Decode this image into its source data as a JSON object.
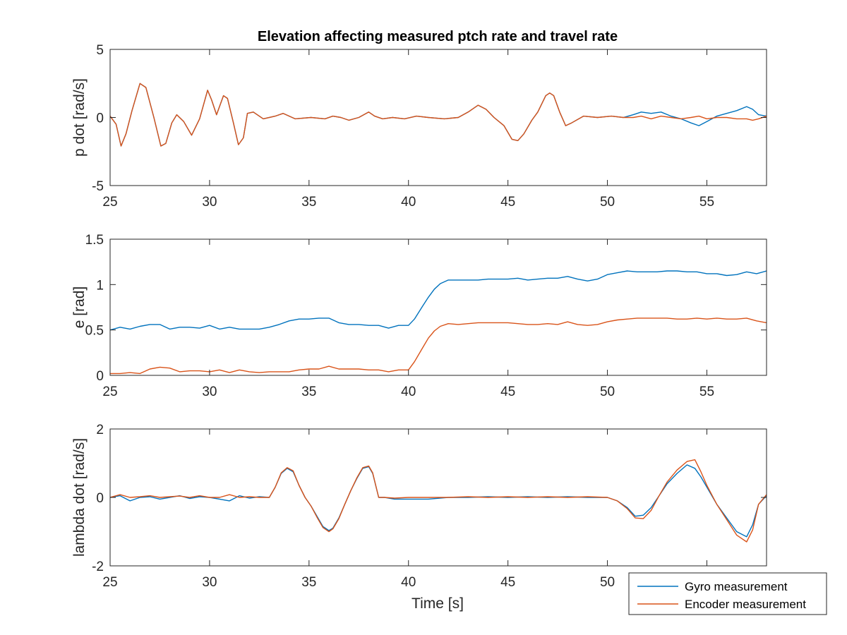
{
  "chart_data": {
    "type": "line",
    "title": "Elevation affecting measured ptch rate and travel rate",
    "xlabel": "Time [s]",
    "xlim": [
      25,
      58
    ],
    "xticks": [
      25,
      30,
      35,
      40,
      45,
      50,
      55
    ],
    "series_names": [
      "Gyro measurement",
      "Encoder measurement"
    ],
    "series_colors": [
      "#0072BD",
      "#D95319"
    ],
    "legend_location": "bottom-right",
    "subplots": [
      {
        "ylabel": "p dot [rad/s]",
        "ylim": [
          -5,
          5
        ],
        "yticks": [
          -5,
          0,
          5
        ],
        "series": [
          {
            "name": "Gyro measurement",
            "x": [
              25,
              25.3,
              25.55,
              25.8,
              26.1,
              26.5,
              26.8,
              27.2,
              27.55,
              27.8,
              28.1,
              28.35,
              28.7,
              29.1,
              29.5,
              29.9,
              30.1,
              30.35,
              30.7,
              30.9,
              31.2,
              31.45,
              31.7,
              31.9,
              32.2,
              32.7,
              33.3,
              33.7,
              34.3,
              35.1,
              35.8,
              36.2,
              36.6,
              37.0,
              37.5,
              38.0,
              38.3,
              38.7,
              39.2,
              39.8,
              40.4,
              41.0,
              41.8,
              42.5,
              43.0,
              43.5,
              43.9,
              44.3,
              44.8,
              45.2,
              45.5,
              45.8,
              46.2,
              46.5,
              46.9,
              47.1,
              47.3,
              47.6,
              47.9,
              48.2,
              48.8,
              49.5,
              50.2,
              50.8,
              51.3,
              51.7,
              52.2,
              52.7,
              53.2,
              53.7,
              54.2,
              54.6,
              55.0,
              55.5,
              56.0,
              56.5,
              57.0,
              57.3,
              57.6,
              58.0
            ],
            "y": [
              0.1,
              -0.5,
              -2.1,
              -1.2,
              0.5,
              2.5,
              2.2,
              0.0,
              -2.1,
              -1.9,
              -0.4,
              0.2,
              -0.3,
              -1.3,
              -0.1,
              2.0,
              1.3,
              0.2,
              1.6,
              1.4,
              -0.4,
              -2.0,
              -1.5,
              0.3,
              0.4,
              -0.1,
              0.1,
              0.3,
              -0.1,
              0.0,
              -0.1,
              0.1,
              0.0,
              -0.2,
              0.0,
              0.4,
              0.1,
              -0.1,
              0.0,
              -0.1,
              0.1,
              0.0,
              -0.1,
              0.0,
              0.4,
              0.9,
              0.6,
              0.0,
              -0.6,
              -1.6,
              -1.7,
              -1.2,
              -0.2,
              0.4,
              1.6,
              1.8,
              1.6,
              0.4,
              -0.6,
              -0.4,
              0.1,
              0.0,
              0.1,
              0.0,
              0.2,
              0.4,
              0.3,
              0.4,
              0.1,
              -0.1,
              -0.4,
              -0.6,
              -0.3,
              0.1,
              0.3,
              0.5,
              0.8,
              0.6,
              0.2,
              0.1
            ]
          },
          {
            "name": "Encoder measurement",
            "x": [
              25,
              25.3,
              25.55,
              25.8,
              26.1,
              26.5,
              26.8,
              27.2,
              27.55,
              27.8,
              28.1,
              28.35,
              28.7,
              29.1,
              29.5,
              29.9,
              30.1,
              30.35,
              30.7,
              30.9,
              31.2,
              31.45,
              31.7,
              31.9,
              32.2,
              32.7,
              33.3,
              33.7,
              34.3,
              35.1,
              35.8,
              36.2,
              36.6,
              37.0,
              37.5,
              38.0,
              38.3,
              38.7,
              39.2,
              39.8,
              40.4,
              41.0,
              41.8,
              42.5,
              43.0,
              43.5,
              43.9,
              44.3,
              44.8,
              45.2,
              45.5,
              45.8,
              46.2,
              46.5,
              46.9,
              47.1,
              47.3,
              47.6,
              47.9,
              48.2,
              48.8,
              49.5,
              50.2,
              50.8,
              51.3,
              51.7,
              52.2,
              52.7,
              53.2,
              53.7,
              54.2,
              54.6,
              55.0,
              55.5,
              56.0,
              56.5,
              57.0,
              57.3,
              57.6,
              58.0
            ],
            "y": [
              0.1,
              -0.5,
              -2.1,
              -1.2,
              0.5,
              2.5,
              2.2,
              0.0,
              -2.1,
              -1.9,
              -0.4,
              0.2,
              -0.3,
              -1.3,
              -0.1,
              2.0,
              1.3,
              0.2,
              1.6,
              1.4,
              -0.4,
              -2.0,
              -1.5,
              0.3,
              0.4,
              -0.1,
              0.1,
              0.3,
              -0.1,
              0.0,
              -0.1,
              0.1,
              0.0,
              -0.2,
              0.0,
              0.4,
              0.1,
              -0.1,
              0.0,
              -0.1,
              0.1,
              0.0,
              -0.1,
              0.0,
              0.4,
              0.9,
              0.6,
              0.0,
              -0.6,
              -1.6,
              -1.7,
              -1.2,
              -0.2,
              0.4,
              1.6,
              1.8,
              1.6,
              0.4,
              -0.6,
              -0.4,
              0.1,
              0.0,
              0.1,
              0.0,
              0.0,
              0.1,
              -0.1,
              0.1,
              0.0,
              -0.1,
              0.0,
              0.1,
              -0.1,
              0.0,
              0.0,
              -0.1,
              -0.1,
              -0.2,
              -0.1,
              0.1
            ]
          }
        ]
      },
      {
        "ylabel": "e [rad]",
        "ylim": [
          0,
          1.5
        ],
        "yticks": [
          0,
          0.5,
          1,
          1.5
        ],
        "series": [
          {
            "name": "Gyro measurement",
            "x": [
              25,
              25.5,
              26,
              26.5,
              27,
              27.5,
              28,
              28.5,
              29,
              29.5,
              30,
              30.5,
              31,
              31.5,
              32,
              32.5,
              33,
              33.5,
              34,
              34.5,
              35,
              35.5,
              36,
              36.5,
              37,
              37.5,
              38,
              38.5,
              39,
              39.5,
              40,
              40.3,
              40.7,
              41,
              41.3,
              41.6,
              42,
              42.5,
              43,
              43.5,
              44,
              44.5,
              45,
              45.5,
              46,
              46.5,
              47,
              47.5,
              48,
              48.5,
              49,
              49.5,
              50,
              50.5,
              51,
              51.5,
              52,
              52.5,
              53,
              53.5,
              54,
              54.5,
              55,
              55.5,
              56,
              56.5,
              57,
              57.5,
              58
            ],
            "y": [
              0.5,
              0.53,
              0.51,
              0.54,
              0.56,
              0.56,
              0.51,
              0.53,
              0.53,
              0.52,
              0.55,
              0.51,
              0.53,
              0.51,
              0.51,
              0.51,
              0.53,
              0.56,
              0.6,
              0.62,
              0.62,
              0.63,
              0.63,
              0.58,
              0.56,
              0.56,
              0.55,
              0.55,
              0.52,
              0.55,
              0.55,
              0.62,
              0.76,
              0.86,
              0.95,
              1.01,
              1.05,
              1.05,
              1.05,
              1.05,
              1.06,
              1.06,
              1.06,
              1.07,
              1.05,
              1.06,
              1.07,
              1.07,
              1.09,
              1.06,
              1.04,
              1.06,
              1.11,
              1.13,
              1.15,
              1.14,
              1.14,
              1.14,
              1.15,
              1.15,
              1.14,
              1.14,
              1.12,
              1.12,
              1.1,
              1.11,
              1.14,
              1.12,
              1.15
            ]
          },
          {
            "name": "Encoder measurement",
            "x": [
              25,
              25.5,
              26,
              26.5,
              27,
              27.5,
              28,
              28.5,
              29,
              29.5,
              30,
              30.5,
              31,
              31.5,
              32,
              32.5,
              33,
              33.5,
              34,
              34.5,
              35,
              35.5,
              36,
              36.5,
              37,
              37.5,
              38,
              38.5,
              39,
              39.5,
              40,
              40.3,
              40.7,
              41,
              41.3,
              41.6,
              42,
              42.5,
              43,
              43.5,
              44,
              44.5,
              45,
              45.5,
              46,
              46.5,
              47,
              47.5,
              48,
              48.5,
              49,
              49.5,
              50,
              50.5,
              51,
              51.5,
              52,
              52.5,
              53,
              53.5,
              54,
              54.5,
              55,
              55.5,
              56,
              56.5,
              57,
              57.5,
              58
            ],
            "y": [
              0.02,
              0.02,
              0.03,
              0.02,
              0.07,
              0.09,
              0.08,
              0.04,
              0.05,
              0.05,
              0.04,
              0.06,
              0.03,
              0.06,
              0.04,
              0.03,
              0.04,
              0.04,
              0.04,
              0.06,
              0.07,
              0.07,
              0.1,
              0.07,
              0.07,
              0.07,
              0.06,
              0.06,
              0.04,
              0.06,
              0.06,
              0.15,
              0.3,
              0.41,
              0.49,
              0.54,
              0.57,
              0.56,
              0.57,
              0.58,
              0.58,
              0.58,
              0.58,
              0.57,
              0.56,
              0.56,
              0.57,
              0.56,
              0.59,
              0.56,
              0.55,
              0.56,
              0.59,
              0.61,
              0.62,
              0.63,
              0.63,
              0.63,
              0.63,
              0.62,
              0.62,
              0.63,
              0.62,
              0.63,
              0.62,
              0.62,
              0.63,
              0.6,
              0.58
            ]
          }
        ]
      },
      {
        "ylabel": "lambda dot [rad/s]",
        "ylim": [
          -2,
          2
        ],
        "yticks": [
          -2,
          0,
          2
        ],
        "series": [
          {
            "name": "Gyro measurement",
            "x": [
              25,
              25.5,
              26,
              26.5,
              27,
              27.5,
              28,
              28.5,
              29,
              29.5,
              30,
              30.5,
              31,
              31.5,
              32,
              32.5,
              33,
              33.3,
              33.6,
              33.9,
              34.2,
              34.5,
              34.8,
              35.1,
              35.4,
              35.7,
              36,
              36.2,
              36.5,
              36.8,
              37.1,
              37.4,
              37.7,
              38,
              38.2,
              38.5,
              38.8,
              39.3,
              40,
              41,
              42,
              43,
              44,
              45,
              46,
              47,
              48,
              49,
              50,
              50.5,
              51,
              51.4,
              51.8,
              52.2,
              52.6,
              53,
              53.5,
              54,
              54.4,
              54.7,
              55,
              55.5,
              56,
              56.5,
              57,
              57.3,
              57.6,
              58
            ],
            "y": [
              0.0,
              0.05,
              -0.1,
              0.0,
              0.02,
              -0.05,
              0.0,
              0.05,
              -0.03,
              0.02,
              0.0,
              -0.05,
              -0.1,
              0.05,
              -0.02,
              0.02,
              0.0,
              0.3,
              0.7,
              0.85,
              0.75,
              0.35,
              0.0,
              -0.25,
              -0.55,
              -0.85,
              -0.97,
              -0.9,
              -0.6,
              -0.2,
              0.2,
              0.55,
              0.85,
              0.9,
              0.7,
              0.0,
              0.0,
              -0.05,
              -0.05,
              -0.05,
              0.0,
              0.0,
              0.02,
              0.0,
              0.02,
              0.0,
              0.02,
              0.0,
              0.0,
              -0.1,
              -0.3,
              -0.55,
              -0.52,
              -0.3,
              0.05,
              0.4,
              0.7,
              0.95,
              0.85,
              0.6,
              0.3,
              -0.2,
              -0.6,
              -1.0,
              -1.15,
              -0.8,
              -0.2,
              0.05
            ]
          },
          {
            "name": "Encoder measurement",
            "x": [
              25,
              25.5,
              26,
              26.5,
              27,
              27.5,
              28,
              28.5,
              29,
              29.5,
              30,
              30.5,
              31,
              31.5,
              32,
              32.5,
              33,
              33.3,
              33.6,
              33.9,
              34.2,
              34.5,
              34.8,
              35.1,
              35.4,
              35.7,
              36,
              36.2,
              36.5,
              36.8,
              37.1,
              37.4,
              37.7,
              38,
              38.2,
              38.5,
              38.8,
              39.3,
              40,
              41,
              42,
              43,
              44,
              45,
              46,
              47,
              48,
              49,
              50,
              50.5,
              51,
              51.4,
              51.8,
              52.2,
              52.6,
              53,
              53.5,
              54,
              54.4,
              54.7,
              55,
              55.5,
              56,
              56.5,
              57,
              57.3,
              57.6,
              58
            ],
            "y": [
              0.0,
              0.08,
              0.0,
              0.02,
              0.05,
              0.0,
              0.02,
              0.04,
              0.0,
              0.05,
              0.0,
              0.0,
              0.08,
              0.0,
              0.02,
              0.0,
              0.0,
              0.3,
              0.72,
              0.87,
              0.78,
              0.35,
              0.0,
              -0.25,
              -0.58,
              -0.88,
              -1.0,
              -0.92,
              -0.62,
              -0.2,
              0.2,
              0.57,
              0.87,
              0.92,
              0.72,
              0.0,
              0.0,
              -0.02,
              0.0,
              0.0,
              0.0,
              0.02,
              0.0,
              0.02,
              0.0,
              0.02,
              0.0,
              0.02,
              0.0,
              -0.1,
              -0.33,
              -0.6,
              -0.62,
              -0.38,
              0.05,
              0.45,
              0.8,
              1.05,
              1.1,
              0.75,
              0.35,
              -0.2,
              -0.65,
              -1.1,
              -1.3,
              -0.95,
              -0.2,
              0.08
            ]
          }
        ]
      }
    ]
  }
}
